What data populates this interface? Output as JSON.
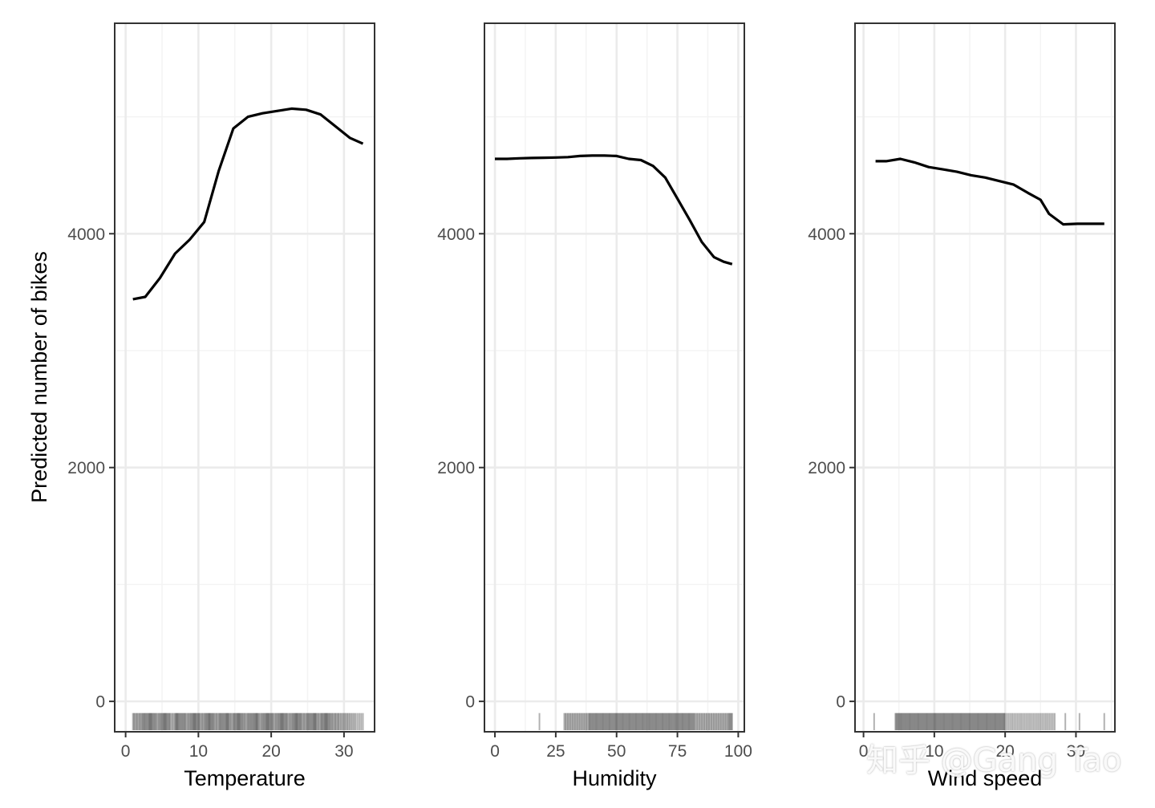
{
  "colors": {
    "panel_border": "#333333",
    "grid_major": "#ebebeb",
    "grid_minor": "#f3f3f3",
    "line": "#000000",
    "rug": "#000000",
    "tick_text": "#4d4d4d"
  },
  "watermark": "知乎 @Gang Tao",
  "chart_data": [
    {
      "type": "line",
      "xlabel": "Temperature",
      "ylabel": "Predicted number of bikes",
      "xlim": [
        -1.5,
        34.2
      ],
      "ylim": [
        -260,
        5800
      ],
      "xticks": [
        0,
        10,
        20,
        30
      ],
      "yticks": [
        0,
        2000,
        4000
      ],
      "grid": true,
      "series": [
        {
          "x": [
            1.0,
            2.7,
            4.7,
            6.8,
            8.8,
            10.8,
            12.8,
            14.8,
            16.8,
            18.8,
            20.8,
            22.8,
            24.8,
            26.8,
            28.8,
            30.8,
            32.6
          ],
          "y": [
            3440,
            3460,
            3620,
            3830,
            3950,
            4100,
            4540,
            4900,
            5000,
            5030,
            5050,
            5070,
            5060,
            5020,
            4920,
            4820,
            4770
          ]
        }
      ],
      "rug": [
        1.0,
        1.6,
        2.2,
        2.7,
        3.2,
        3.6,
        4.1,
        4.7,
        5.2,
        5.6,
        6.1,
        6.8,
        7.2,
        7.7,
        8.2,
        8.8,
        9.3,
        9.7,
        10.2,
        10.8,
        11.3,
        11.7,
        12.2,
        12.8,
        13.3,
        13.8,
        14.2,
        14.8,
        15.3,
        15.7,
        16.2,
        16.8,
        17.3,
        17.8,
        18.2,
        18.8,
        19.3,
        19.7,
        20.2,
        20.8,
        21.3,
        21.7,
        22.2,
        22.8,
        23.3,
        23.7,
        24.2,
        24.8,
        25.3,
        25.8,
        26.2,
        26.8,
        27.3,
        27.7,
        28.2,
        28.8,
        29.4,
        30.1,
        30.8,
        31.6,
        32.6
      ]
    },
    {
      "type": "line",
      "xlabel": "Humidity",
      "xlim": [
        -4.3,
        102.5
      ],
      "ylim": [
        -260,
        5800
      ],
      "xticks": [
        0,
        25,
        50,
        75,
        100
      ],
      "yticks": [
        0,
        2000,
        4000
      ],
      "grid": true,
      "series": [
        {
          "x": [
            0,
            5,
            10,
            15,
            20,
            25,
            30,
            35,
            40,
            45,
            50,
            55,
            60,
            65,
            70,
            75,
            80,
            85,
            90,
            94,
            97.5
          ],
          "y": [
            4640,
            4640,
            4645,
            4648,
            4650,
            4652,
            4655,
            4665,
            4668,
            4668,
            4665,
            4640,
            4630,
            4580,
            4480,
            4300,
            4120,
            3930,
            3800,
            3760,
            3740
          ]
        }
      ],
      "rug": [
        18.3,
        28.5,
        30.5,
        32.5,
        34.5,
        36.5,
        38.5,
        40,
        41.5,
        43,
        44.5,
        46,
        47.5,
        49,
        50.5,
        52,
        53.5,
        55,
        56.5,
        58,
        59.5,
        61,
        62.5,
        64,
        65.5,
        67,
        68.5,
        70,
        71.5,
        73,
        74.5,
        76,
        77.5,
        79,
        80.5,
        82,
        84,
        86,
        88,
        90,
        92,
        94,
        96,
        97.5
      ]
    },
    {
      "type": "line",
      "xlabel": "Wind speed",
      "xlim": [
        -1.2,
        35.5
      ],
      "ylim": [
        -260,
        5800
      ],
      "xticks": [
        0,
        10,
        20,
        30
      ],
      "yticks": [
        0,
        2000,
        4000
      ],
      "grid": true,
      "series": [
        {
          "x": [
            1.7,
            3.2,
            5.2,
            7.2,
            9.2,
            11.2,
            13.2,
            15.2,
            17.2,
            19.2,
            21.2,
            23.2,
            25.0,
            26.2,
            28.2,
            30.2,
            32.2,
            34.0
          ],
          "y": [
            4620,
            4620,
            4640,
            4610,
            4570,
            4550,
            4530,
            4500,
            4480,
            4450,
            4420,
            4350,
            4290,
            4170,
            4080,
            4085,
            4085,
            4085
          ]
        }
      ],
      "rug": [
        1.5,
        4.5,
        5.0,
        5.5,
        6.0,
        6.5,
        7.0,
        7.5,
        8.0,
        8.5,
        9.0,
        9.5,
        10.0,
        10.5,
        11.0,
        11.5,
        12.0,
        12.5,
        13.0,
        13.5,
        14.0,
        14.5,
        15.0,
        15.5,
        16.0,
        16.5,
        17.0,
        17.5,
        18.0,
        18.5,
        19.0,
        19.5,
        20.0,
        21.0,
        22.0,
        23.0,
        24.0,
        25.0,
        26.0,
        27.0,
        28.5,
        30.5,
        34.0
      ]
    }
  ]
}
